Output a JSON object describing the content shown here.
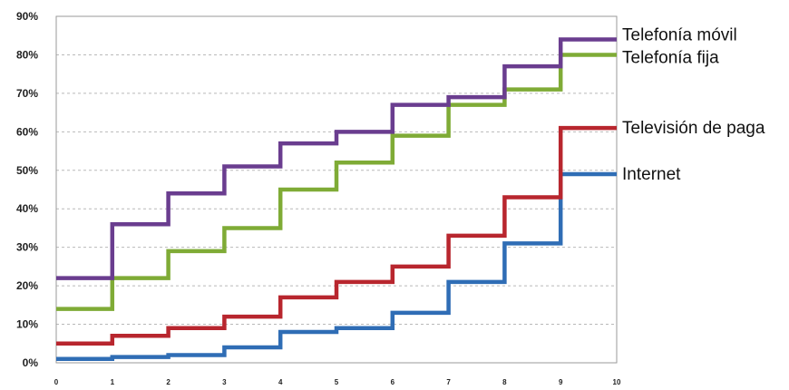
{
  "chart_data": {
    "type": "line",
    "title": "",
    "xlabel": "",
    "ylabel": "",
    "x": [
      0,
      1,
      2,
      3,
      4,
      5,
      6,
      7,
      8,
      9,
      10
    ],
    "xlim": [
      0,
      10
    ],
    "ylim": [
      0,
      90
    ],
    "y_ticks": [
      "0%",
      "10%",
      "20%",
      "30%",
      "40%",
      "50%",
      "60%",
      "70%",
      "80%",
      "90%"
    ],
    "x_ticks": [
      "0",
      "1",
      "2",
      "3",
      "4",
      "5",
      "6",
      "7",
      "8",
      "9",
      "10"
    ],
    "grid": true,
    "legend_placement": "right, beside line ends",
    "step": true,
    "series": [
      {
        "name": "Telefonía móvil",
        "color": "#6a3d8f",
        "values": [
          22,
          36,
          44,
          51,
          57,
          60,
          67,
          69,
          77,
          84,
          84
        ]
      },
      {
        "name": "Telefonía fija",
        "color": "#7fab36",
        "values": [
          14,
          22,
          29,
          35,
          45,
          52,
          59,
          67,
          71,
          80,
          80
        ]
      },
      {
        "name": "Televisión de paga",
        "color": "#b8262e",
        "values": [
          5,
          7,
          9,
          12,
          17,
          21,
          25,
          33,
          43,
          61,
          61
        ]
      },
      {
        "name": "Internet",
        "color": "#2f6db5",
        "values": [
          1,
          1.5,
          2,
          4,
          8,
          9,
          13,
          21,
          31,
          49,
          49
        ]
      }
    ]
  }
}
